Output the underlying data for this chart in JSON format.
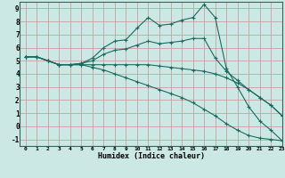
{
  "xlabel": "Humidex (Indice chaleur)",
  "bg_color": "#cce8e4",
  "grid_color": "#c8a0a0",
  "line_color": "#1a6b5e",
  "xlim": [
    -0.5,
    23
  ],
  "ylim": [
    -1.5,
    9.5
  ],
  "xticks": [
    0,
    1,
    2,
    3,
    4,
    5,
    6,
    7,
    8,
    9,
    10,
    11,
    12,
    13,
    14,
    15,
    16,
    17,
    18,
    19,
    20,
    21,
    22,
    23
  ],
  "yticks": [
    -1,
    0,
    1,
    2,
    3,
    4,
    5,
    6,
    7,
    8,
    9
  ],
  "lines": [
    {
      "x": [
        0,
        1,
        2,
        3,
        4,
        5,
        6,
        7,
        8,
        9,
        10,
        11,
        12,
        13,
        14,
        15,
        16,
        17,
        18,
        19,
        20,
        21,
        22,
        23
      ],
      "y": [
        5.3,
        5.3,
        5.0,
        4.7,
        4.7,
        4.8,
        5.2,
        6.0,
        6.5,
        6.6,
        7.5,
        8.3,
        7.7,
        7.8,
        8.1,
        8.3,
        9.3,
        8.3,
        4.4,
        3.0,
        1.5,
        0.4,
        -0.3,
        -1.1
      ]
    },
    {
      "x": [
        0,
        1,
        2,
        3,
        4,
        5,
        6,
        7,
        8,
        9,
        10,
        11,
        12,
        13,
        14,
        15,
        16,
        17,
        18,
        19,
        20,
        21,
        22,
        23
      ],
      "y": [
        5.3,
        5.3,
        5.0,
        4.7,
        4.7,
        4.8,
        5.0,
        5.5,
        5.8,
        5.9,
        6.2,
        6.5,
        6.3,
        6.4,
        6.5,
        6.7,
        6.7,
        5.2,
        4.2,
        3.5,
        2.8,
        2.2,
        1.6,
        0.8
      ]
    },
    {
      "x": [
        0,
        1,
        2,
        3,
        4,
        5,
        6,
        7,
        8,
        9,
        10,
        11,
        12,
        13,
        14,
        15,
        16,
        17,
        18,
        19,
        20,
        21,
        22,
        23
      ],
      "y": [
        5.3,
        5.3,
        5.0,
        4.7,
        4.7,
        4.7,
        4.7,
        4.7,
        4.7,
        4.7,
        4.7,
        4.7,
        4.6,
        4.5,
        4.4,
        4.3,
        4.2,
        4.0,
        3.7,
        3.3,
        2.8,
        2.2,
        1.6,
        0.8
      ]
    },
    {
      "x": [
        0,
        1,
        2,
        3,
        4,
        5,
        6,
        7,
        8,
        9,
        10,
        11,
        12,
        13,
        14,
        15,
        16,
        17,
        18,
        19,
        20,
        21,
        22,
        23
      ],
      "y": [
        5.3,
        5.3,
        5.0,
        4.7,
        4.7,
        4.7,
        4.5,
        4.3,
        4.0,
        3.7,
        3.4,
        3.1,
        2.8,
        2.5,
        2.2,
        1.8,
        1.3,
        0.8,
        0.2,
        -0.3,
        -0.7,
        -0.9,
        -1.0,
        -1.1
      ]
    }
  ]
}
